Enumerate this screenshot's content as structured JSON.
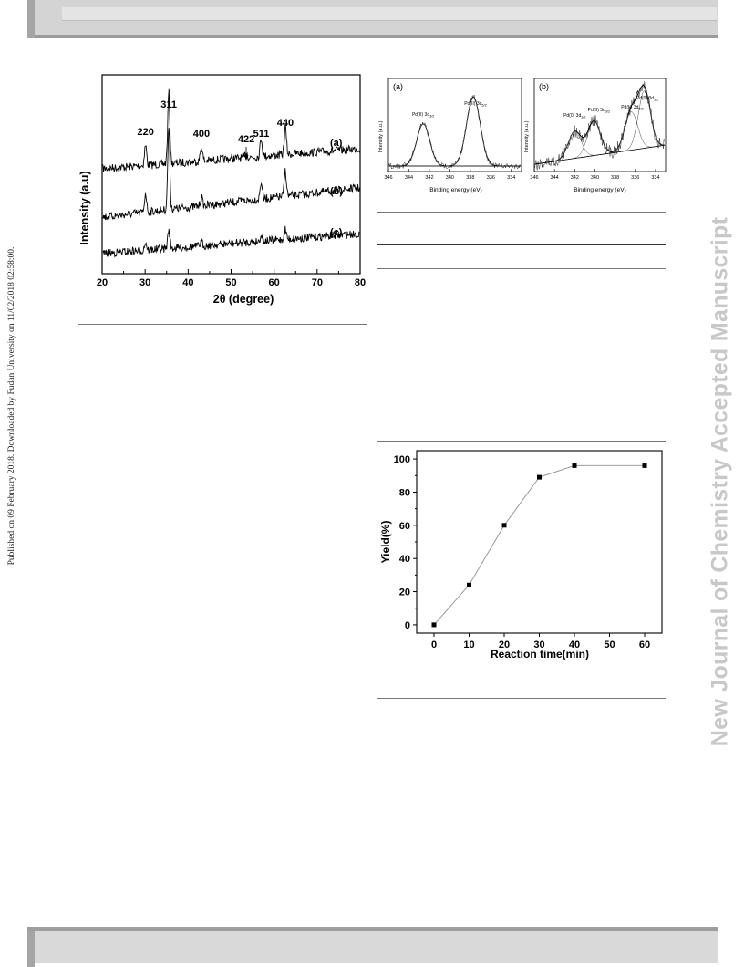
{
  "page": {
    "side_note": "Published on 09 February 2018. Downloaded by Fudan University on 11/02/2018 02:58:00.",
    "watermark": "New Journal of Chemistry Accepted Manuscript"
  },
  "chart_data": [
    {
      "id": "xrd",
      "type": "line",
      "xlabel": "2θ (degree)",
      "ylabel": "Intensity (a.u)",
      "xlim": [
        20,
        80
      ],
      "xticks": [
        20,
        30,
        40,
        50,
        60,
        70,
        80
      ],
      "peak_labels": [
        {
          "text": "220",
          "x": 30.1
        },
        {
          "text": "311",
          "x": 35.5
        },
        {
          "text": "400",
          "x": 43.1
        },
        {
          "text": "422",
          "x": 53.5
        },
        {
          "text": "511",
          "x": 57.0
        },
        {
          "text": "440",
          "x": 62.6
        }
      ],
      "series": [
        {
          "name": "(a)",
          "peaks": [
            [
              30.1,
              0.28
            ],
            [
              35.5,
              1.0
            ],
            [
              43.1,
              0.2
            ],
            [
              53.5,
              0.08
            ],
            [
              57.0,
              0.25
            ],
            [
              62.6,
              0.38
            ]
          ]
        },
        {
          "name": "(b)",
          "peaks": [
            [
              30.1,
              0.22
            ],
            [
              35.5,
              0.95
            ],
            [
              43.1,
              0.1
            ],
            [
              57.0,
              0.2
            ],
            [
              62.6,
              0.3
            ]
          ]
        },
        {
          "name": "(c)",
          "peaks": [
            [
              30.1,
              0.16
            ],
            [
              35.5,
              0.38
            ],
            [
              43.1,
              0.08
            ],
            [
              57.0,
              0.12
            ],
            [
              62.6,
              0.2
            ]
          ]
        }
      ]
    },
    {
      "id": "xps-a",
      "type": "line",
      "panel_label": "(a)",
      "xlabel": "Binding energy (eV)",
      "ylabel": "Intensity (a.u.)",
      "xlim": [
        346,
        333
      ],
      "xticks": [
        346,
        344,
        342,
        340,
        338,
        336,
        334
      ],
      "annotations": [
        {
          "text": "Pd(II) 3d3/2",
          "main": "Pd(II) 3d",
          "sub": "3/2",
          "x": 342.6
        },
        {
          "text": "Pd(II) 3d5/2",
          "main": "Pd(II) 3d",
          "sub": "5/2",
          "x": 337.5
        }
      ],
      "peaks": [
        {
          "center": 342.6,
          "height": 0.55,
          "width": 0.9
        },
        {
          "center": 337.7,
          "height": 0.9,
          "width": 0.95
        }
      ]
    },
    {
      "id": "xps-b",
      "type": "line",
      "panel_label": "(b)",
      "xlabel": "Binding energy (eV)",
      "ylabel": "Intensity (a.u.)",
      "xlim": [
        346,
        333
      ],
      "xticks": [
        346,
        344,
        342,
        340,
        338,
        336,
        334
      ],
      "annotations": [
        {
          "text": "Pd(0) 3d3/2",
          "main": "Pd(0) 3d",
          "sub": "3/2",
          "x": 342.0
        },
        {
          "text": "Pd(II) 3d3/2",
          "main": "Pd(II) 3d",
          "sub": "3/2",
          "x": 339.6
        },
        {
          "text": "Pd(II) 3d5/2",
          "main": "Pd(II) 3d",
          "sub": "5/2",
          "x": 336.3
        },
        {
          "text": "Pd(0) 3d5/2",
          "main": "Pd(0) 3d",
          "sub": "5/2",
          "x": 334.8
        }
      ],
      "peaks": [
        {
          "center": 342.0,
          "height": 0.35,
          "width": 0.9
        },
        {
          "center": 340.1,
          "height": 0.45,
          "width": 0.9
        },
        {
          "center": 336.4,
          "height": 0.5,
          "width": 0.9
        },
        {
          "center": 335.1,
          "height": 0.75,
          "width": 0.85
        }
      ]
    },
    {
      "id": "yield",
      "type": "line",
      "xlabel": "Reaction time(min)",
      "ylabel": "Yield(%)",
      "categories": [
        "0",
        "10",
        "20",
        "30",
        "40",
        "50",
        "60"
      ],
      "x": [
        0,
        10,
        20,
        30,
        40,
        60
      ],
      "y": [
        0,
        24,
        60,
        89,
        96,
        96
      ],
      "ylim": [
        -5,
        105
      ],
      "yticks": [
        0,
        20,
        40,
        60,
        80,
        100
      ]
    }
  ]
}
